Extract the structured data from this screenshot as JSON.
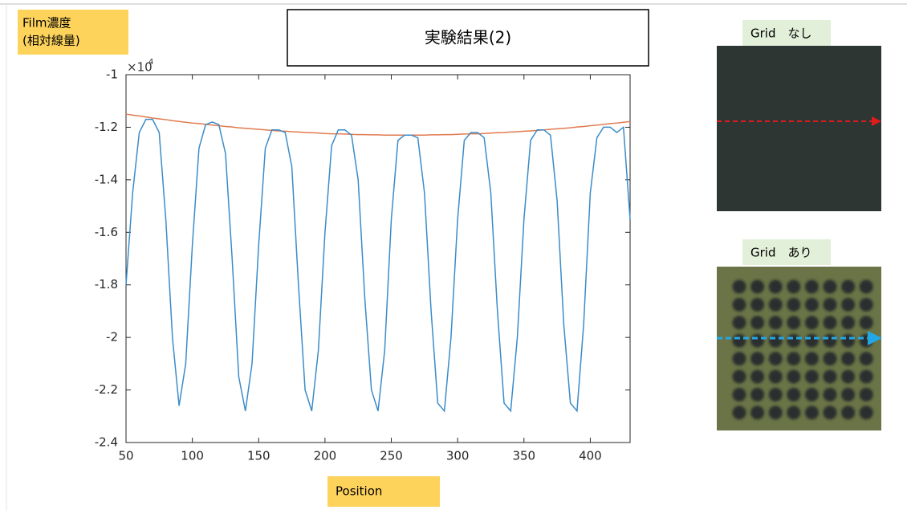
{
  "chart_data": {
    "type": "line",
    "title": "実験結果(2)",
    "y_label": [
      "Film濃度",
      "(相対線量)"
    ],
    "x_label": "Position",
    "y_exponent": {
      "base": "×10",
      "power": 4
    },
    "xlim": [
      50,
      430
    ],
    "xticks": [
      50,
      100,
      150,
      200,
      250,
      300,
      350,
      400
    ],
    "ylim": [
      -24000,
      -10000
    ],
    "yticks": [
      {
        "value": -10000,
        "label": "-1"
      },
      {
        "value": -12000,
        "label": "-1.2"
      },
      {
        "value": -14000,
        "label": "-1.4"
      },
      {
        "value": -16000,
        "label": "-1.6"
      },
      {
        "value": -18000,
        "label": "-1.8"
      },
      {
        "value": -20000,
        "label": "-2"
      },
      {
        "value": -22000,
        "label": "-2.2"
      },
      {
        "value": -24000,
        "label": "-2.4"
      }
    ],
    "x": [
      50,
      55,
      60,
      65,
      70,
      75,
      80,
      85,
      90,
      95,
      100,
      105,
      110,
      115,
      120,
      125,
      130,
      135,
      140,
      145,
      150,
      155,
      160,
      165,
      170,
      175,
      180,
      185,
      190,
      195,
      200,
      205,
      210,
      215,
      220,
      225,
      230,
      235,
      240,
      245,
      250,
      255,
      260,
      265,
      270,
      275,
      280,
      285,
      290,
      295,
      300,
      305,
      310,
      315,
      320,
      325,
      330,
      335,
      340,
      345,
      350,
      355,
      360,
      365,
      370,
      375,
      380,
      385,
      390,
      395,
      400,
      405,
      410,
      415,
      420,
      425,
      430
    ],
    "series": [
      {
        "color": "#3a8cc9",
        "values": [
          -18000,
          -14500,
          -12200,
          -11700,
          -11700,
          -12200,
          -15500,
          -20000,
          -22600,
          -21000,
          -16500,
          -12800,
          -11900,
          -11800,
          -11900,
          -13000,
          -17000,
          -21500,
          -22800,
          -21000,
          -16500,
          -12800,
          -12100,
          -12100,
          -12200,
          -13500,
          -18000,
          -22000,
          -22800,
          -20500,
          -16000,
          -12700,
          -12100,
          -12100,
          -12300,
          -14000,
          -18500,
          -22000,
          -22800,
          -20500,
          -15500,
          -12500,
          -12300,
          -12300,
          -12400,
          -14500,
          -19000,
          -22500,
          -22800,
          -20000,
          -15500,
          -12500,
          -12200,
          -12200,
          -12400,
          -14500,
          -19000,
          -22500,
          -22800,
          -20000,
          -15500,
          -12500,
          -12100,
          -12100,
          -12300,
          -14800,
          -19500,
          -22500,
          -22800,
          -19500,
          -14500,
          -12400,
          -12000,
          -12000,
          -12200,
          -12000,
          -15500
        ]
      },
      {
        "color": "#e07a4f",
        "values": [
          -11500,
          -11540,
          -11570,
          -11610,
          -11650,
          -11680,
          -11710,
          -11750,
          -11780,
          -11810,
          -11840,
          -11860,
          -11890,
          -11920,
          -11940,
          -11970,
          -11990,
          -12020,
          -12040,
          -12060,
          -12080,
          -12100,
          -12120,
          -12140,
          -12150,
          -12170,
          -12180,
          -12200,
          -12210,
          -12220,
          -12240,
          -12250,
          -12250,
          -12260,
          -12270,
          -12280,
          -12280,
          -12290,
          -12290,
          -12300,
          -12300,
          -12300,
          -12300,
          -12300,
          -12300,
          -12300,
          -12290,
          -12290,
          -12280,
          -12280,
          -12270,
          -12260,
          -12250,
          -12250,
          -12240,
          -12220,
          -12210,
          -12200,
          -12180,
          -12170,
          -12150,
          -12140,
          -12120,
          -12100,
          -12080,
          -12060,
          -12040,
          -12020,
          -11990,
          -11970,
          -11940,
          -11920,
          -11890,
          -11860,
          -11840,
          -11810,
          -11780
        ]
      }
    ]
  },
  "panels": [
    {
      "label": "Grid　なし"
    },
    {
      "label": "Grid　あり"
    }
  ]
}
